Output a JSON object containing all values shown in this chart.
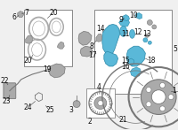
{
  "bg_color": "#f0f0f0",
  "caliper_color": "#5ab8d8",
  "caliper_edge": "#2a88a8",
  "gray": "#aaaaaa",
  "dark_gray": "#777777",
  "line_color": "#444444",
  "text_color": "#111111",
  "white": "#ffffff",
  "box_edge": "#888888",
  "fs": 5.5
}
